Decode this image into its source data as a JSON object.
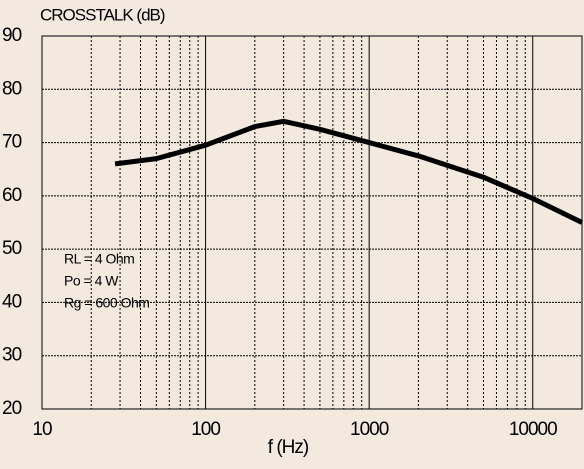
{
  "chart_data": {
    "type": "line",
    "title": "CROSSTALK (dB)",
    "x_label": "f (Hz)",
    "annotations": [
      "RL = 4 Ohm",
      "Po = 4 W",
      "Rg = 600 Ohm"
    ],
    "x": [
      28,
      50,
      100,
      200,
      300,
      500,
      1000,
      2000,
      5000,
      10000,
      20000
    ],
    "series": [
      {
        "name": "crosstalk",
        "color": "#000000",
        "values": [
          66,
          67,
          69.5,
          73,
          74,
          72.5,
          70,
          67.5,
          63.5,
          59.5,
          55
        ]
      }
    ],
    "xscale": "log",
    "xlim": [
      10,
      20000
    ],
    "xticks": [
      10,
      100,
      1000,
      10000
    ],
    "xminorticks": [
      20,
      30,
      40,
      50,
      60,
      70,
      80,
      90,
      200,
      300,
      400,
      500,
      600,
      700,
      800,
      900,
      2000,
      3000,
      4000,
      5000,
      6000,
      7000,
      8000,
      9000
    ],
    "ylim": [
      20,
      90
    ],
    "yticks": [
      20,
      30,
      40,
      50,
      60,
      70,
      80,
      90
    ],
    "grid": true
  }
}
